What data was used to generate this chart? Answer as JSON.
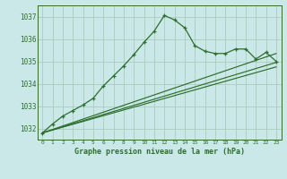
{
  "bg_color": "#cbe8e8",
  "grid_color": "#aaccbb",
  "line_color": "#2d6e2d",
  "title": "Graphe pression niveau de la mer (hPa)",
  "ylim": [
    1031.5,
    1037.5
  ],
  "xlim": [
    -0.5,
    23.5
  ],
  "yticks": [
    1032,
    1033,
    1034,
    1035,
    1036,
    1037
  ],
  "xtick_labels": [
    "0",
    "1",
    "2",
    "3",
    "4",
    "5",
    "6",
    "7",
    "8",
    "9",
    "10",
    "11",
    "12",
    "13",
    "14",
    "15",
    "16",
    "17",
    "18",
    "19",
    "20",
    "21",
    "22",
    "23"
  ],
  "series1_x": [
    0,
    1,
    2,
    3,
    4,
    5,
    6,
    7,
    8,
    9,
    10,
    11,
    12,
    13,
    14,
    15,
    16,
    17,
    18,
    19,
    20,
    21,
    22,
    23
  ],
  "series1_y": [
    1031.8,
    1032.2,
    1032.55,
    1032.8,
    1033.05,
    1033.35,
    1033.9,
    1034.35,
    1034.8,
    1035.3,
    1035.85,
    1036.35,
    1037.05,
    1036.85,
    1036.5,
    1035.7,
    1035.45,
    1035.35,
    1035.35,
    1035.55,
    1035.55,
    1035.1,
    1035.4,
    1035.0
  ],
  "series2_x": [
    0,
    23
  ],
  "series2_y": [
    1031.8,
    1035.35
  ],
  "series3_x": [
    0,
    23
  ],
  "series3_y": [
    1031.8,
    1034.95
  ],
  "series4_x": [
    0,
    23
  ],
  "series4_y": [
    1031.8,
    1034.75
  ]
}
